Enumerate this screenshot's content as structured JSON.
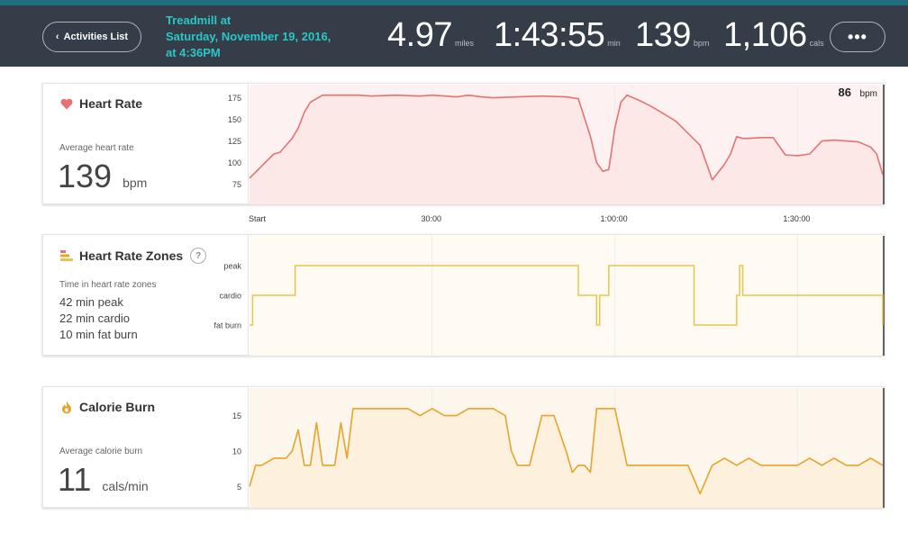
{
  "header": {
    "back_label": "Activities List",
    "title_line1": "Treadmill at",
    "title_line2": "Saturday, November 19, 2016,",
    "title_line3": "at 4:36PM",
    "stats": [
      {
        "value": "4.97",
        "unit": "miles"
      },
      {
        "value": "1:43:55",
        "unit": "min"
      },
      {
        "value": "139",
        "unit": "bpm"
      },
      {
        "value": "1,106",
        "unit": "cals"
      }
    ],
    "more_label": "•••"
  },
  "heart_rate": {
    "title": "Heart Rate",
    "avg_label": "Average heart rate",
    "avg_value": "139",
    "avg_unit": "bpm",
    "current_value": "86",
    "current_unit": "bpm",
    "y_ticks": [
      "175",
      "150",
      "125",
      "100",
      "75"
    ],
    "color": "#e57373"
  },
  "time_axis": {
    "labels": [
      "Start",
      "30:00",
      "1:00:00",
      "1:30:00"
    ]
  },
  "zones": {
    "title": "Heart Rate Zones",
    "help": "?",
    "sub_label": "Time in heart rate zones",
    "lines": [
      "42 min peak",
      "22 min cardio",
      "10 min fat burn"
    ],
    "y_ticks": [
      "peak",
      "cardio",
      "fat burn"
    ],
    "color": "#e8c54a"
  },
  "calories": {
    "title": "Calorie Burn",
    "avg_label": "Average calorie burn",
    "avg_value": "11",
    "avg_unit": "cals/min",
    "y_ticks": [
      "15",
      "10",
      "5"
    ],
    "color": "#e6a42b"
  },
  "chart_data": [
    {
      "type": "area",
      "title": "Heart Rate",
      "ylabel": "bpm",
      "ylim": [
        60,
        185
      ],
      "xlim": [
        0,
        104
      ],
      "x": [
        0,
        2,
        4,
        5,
        6,
        7,
        8,
        9,
        10,
        12,
        14,
        18,
        20,
        24,
        28,
        30,
        34,
        36,
        38,
        40,
        44,
        48,
        52,
        54,
        56,
        57,
        58,
        59,
        60,
        61,
        62,
        64,
        66,
        70,
        74,
        76,
        78,
        79,
        80,
        81,
        82,
        84,
        86,
        88,
        90,
        92,
        94,
        96,
        98,
        100,
        102,
        103,
        104
      ],
      "values": [
        82,
        96,
        110,
        112,
        120,
        128,
        140,
        158,
        170,
        178,
        178,
        178,
        177,
        178,
        177,
        178,
        176,
        178,
        176,
        175,
        176,
        177,
        176,
        174,
        130,
        100,
        90,
        92,
        140,
        170,
        178,
        172,
        165,
        148,
        120,
        80,
        98,
        110,
        130,
        128,
        128,
        129,
        129,
        109,
        108,
        110,
        125,
        126,
        125,
        124,
        118,
        110,
        86
      ]
    },
    {
      "type": "line",
      "title": "Heart Rate Zones",
      "y_categories": [
        "fat burn",
        "cardio",
        "peak"
      ],
      "xlim": [
        0,
        104
      ],
      "x": [
        0,
        0.5,
        7.5,
        53.5,
        54,
        57,
        57.5,
        58.5,
        59,
        72.5,
        73,
        79.5,
        80,
        80.5,
        81,
        103.5,
        104
      ],
      "values": [
        "fat burn",
        "cardio",
        "peak",
        "peak",
        "cardio",
        "fat burn",
        "cardio",
        "cardio",
        "peak",
        "peak",
        "fat burn",
        "fat burn",
        "cardio",
        "peak",
        "cardio",
        "cardio",
        "fat burn"
      ]
    },
    {
      "type": "area",
      "title": "Calorie Burn",
      "ylabel": "cals/min",
      "ylim": [
        2,
        18
      ],
      "xlim": [
        0,
        104
      ],
      "x": [
        0,
        1,
        2,
        4,
        6,
        7,
        8,
        9,
        10,
        11,
        12,
        13,
        14,
        15,
        16,
        17,
        18,
        19,
        20,
        22,
        24,
        26,
        28,
        30,
        32,
        34,
        36,
        38,
        40,
        42,
        43,
        44,
        45,
        46,
        48,
        50,
        52,
        53,
        54,
        55,
        56,
        57,
        58,
        60,
        62,
        63,
        64,
        66,
        68,
        70,
        72,
        73,
        74,
        76,
        78,
        80,
        82,
        84,
        86,
        88,
        90,
        92,
        94,
        96,
        98,
        100,
        102,
        104
      ],
      "values": [
        5,
        8,
        8,
        9,
        9,
        10,
        13,
        8,
        8,
        14,
        8,
        8,
        8,
        14,
        9,
        16,
        16,
        16,
        16,
        16,
        16,
        16,
        15,
        16,
        15,
        15,
        16,
        16,
        16,
        15,
        10,
        8,
        8,
        8,
        15,
        15,
        10,
        7,
        8,
        8,
        7,
        16,
        16,
        16,
        8,
        8,
        8,
        8,
        8,
        8,
        8,
        6,
        4,
        8,
        9,
        8,
        9,
        8,
        8,
        8,
        8,
        9,
        8,
        9,
        8,
        8,
        9,
        8
      ]
    }
  ]
}
